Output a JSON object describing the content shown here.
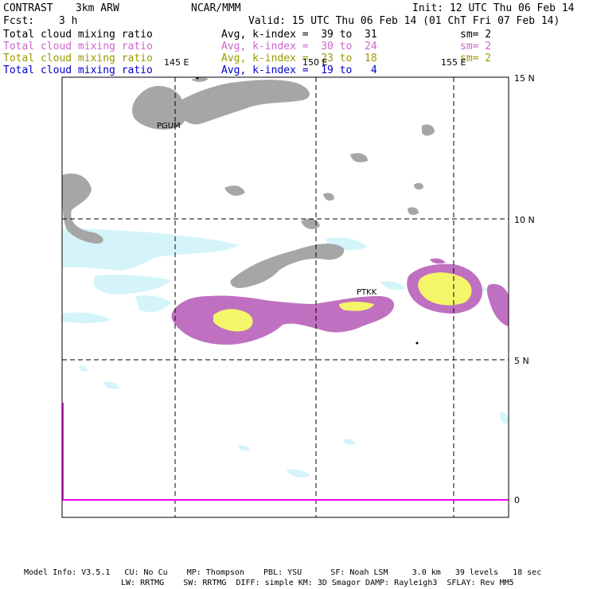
{
  "header": {
    "product": "CONTRAST",
    "model": "3km ARW",
    "center": "NCAR/MMM",
    "init": "Init: 12 UTC Thu 06 Feb 14",
    "fcst_label": "Fcst:",
    "fcst_value": "3 h",
    "valid": "Valid: 15 UTC Thu 06 Feb 14 (01 ChT Fri 07 Feb 14)"
  },
  "legend": [
    {
      "field": "Total cloud mixing ratio",
      "range": "Avg, k-index =  39 to  31",
      "sm": "sm= 2",
      "color": "#000000"
    },
    {
      "field": "Total cloud mixing ratio",
      "range": "Avg, k-index =  30 to  24",
      "sm": "sm= 2",
      "color": "#cc66cc"
    },
    {
      "field": "Total cloud mixing ratio",
      "range": "Avg, k-index =  23 to  18",
      "sm": "sm= 2",
      "color": "#999900"
    },
    {
      "field": "Total cloud mixing ratio",
      "range": "Avg, k-index =  19 to   4",
      "sm": "",
      "color": "#0000cc"
    }
  ],
  "map": {
    "lon_labels": [
      "145 E",
      "150 E",
      "155 E"
    ],
    "lat_labels": [
      "15 N",
      "10 N",
      "5 N",
      "0"
    ],
    "stations": [
      "PGUM",
      "PTKK"
    ],
    "colors": {
      "gray": "#a6a6a6",
      "cyan": "#d4f4fa",
      "purple": "#c070c0",
      "yellow": "#f5f56a",
      "magenta": "#ff00ff"
    }
  },
  "footer": {
    "line1": "Model Info: V3.5.1   CU: No Cu    MP: Thompson    PBL: YSU      SF: Noah LSM     3.0 km   39 levels   18 sec",
    "line2": "LW: RRTMG    SW: RRTMG  DIFF: simple KM: 3D Smagor DAMP: Rayleigh3  SFLAY: Rev MM5"
  }
}
